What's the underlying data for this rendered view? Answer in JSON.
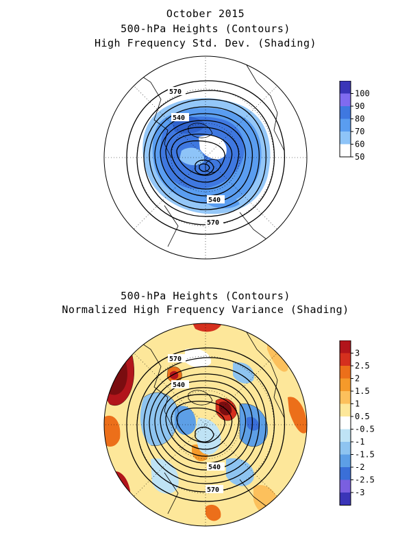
{
  "top_panel": {
    "title_line1": "October 2015",
    "title_line2": "500-hPa Heights (Contours)",
    "title_line3": "High Frequency Std. Dev. (Shading)",
    "contour_labels": [
      "570",
      "540",
      "540",
      "570"
    ],
    "colorbar": {
      "ticks": [
        "100",
        "90",
        "80",
        "70",
        "60",
        "50"
      ],
      "colors": [
        "#3a35b8",
        "#7f6bf0",
        "#3f78e0",
        "#5a9df0",
        "#8ec4f8",
        "#ffffff"
      ]
    }
  },
  "bottom_panel": {
    "title_line1": "500-hPa Heights (Contours)",
    "title_line2": "Normalized High Frequency Variance (Shading)",
    "contour_labels": [
      "570",
      "540",
      "540",
      "570"
    ],
    "colorbar": {
      "ticks": [
        "3",
        "2.5",
        "2",
        "1.5",
        "1",
        "0.5",
        "-0.5",
        "-1",
        "-1.5",
        "-2",
        "-2.5",
        "-3"
      ],
      "colors": [
        "#b2151b",
        "#d5301e",
        "#ec6f1a",
        "#f59a2a",
        "#fcc05c",
        "#fde79a",
        "#ffffff",
        "#bfe3f5",
        "#8ec4f0",
        "#5d9fe6",
        "#3a6fd8",
        "#7a5fe0",
        "#3a35b8"
      ]
    }
  }
}
